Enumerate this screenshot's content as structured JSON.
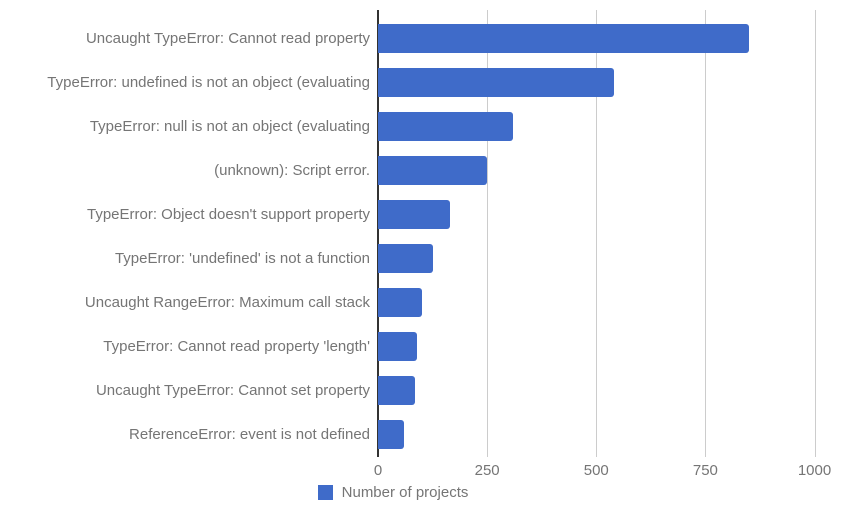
{
  "chart_data": {
    "type": "bar",
    "orientation": "horizontal",
    "title": "",
    "xlabel": "",
    "ylabel": "",
    "categories": [
      "Uncaught TypeError: Cannot read property",
      "TypeError: undefined is not an object (evaluating",
      "TypeError: null is not an object (evaluating",
      "(unknown): Script error.",
      "TypeError: Object doesn't support property",
      "TypeError: 'undefined' is not a function",
      "Uncaught RangeError: Maximum call stack",
      "TypeError: Cannot read property 'length'",
      "Uncaught TypeError: Cannot set property",
      "ReferenceError: event is not defined"
    ],
    "series": [
      {
        "name": "Number of projects",
        "values": [
          850,
          540,
          310,
          250,
          165,
          125,
          100,
          90,
          85,
          60
        ]
      }
    ],
    "xticks": [
      0,
      250,
      500,
      750,
      1000
    ],
    "xlim": [
      0,
      1040
    ],
    "grid": true,
    "legend_position": "bottom",
    "colors": {
      "bar": "#3f6bc9",
      "gridline": "#cccccc",
      "axis": "#333333",
      "text": "#757575"
    }
  },
  "legend": {
    "label": "Number of projects"
  }
}
